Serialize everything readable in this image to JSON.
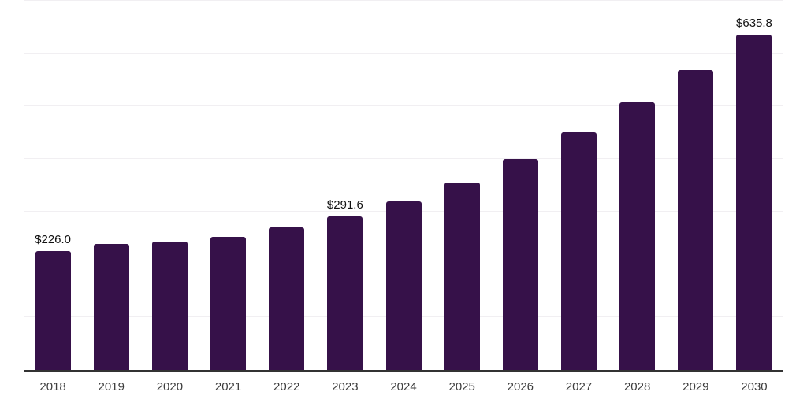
{
  "chart_data": {
    "type": "bar",
    "title": "",
    "xlabel": "",
    "ylabel": "",
    "categories": [
      "2018",
      "2019",
      "2020",
      "2021",
      "2022",
      "2023",
      "2024",
      "2025",
      "2026",
      "2027",
      "2028",
      "2029",
      "2030"
    ],
    "values": [
      226.0,
      239,
      244,
      253,
      270,
      291.6,
      319,
      356,
      400,
      451,
      507,
      568,
      635.8
    ],
    "value_labels": [
      "$226.0",
      "",
      "",
      "",
      "",
      "$291.6",
      "",
      "",
      "",
      "",
      "",
      "",
      "$635.8"
    ],
    "ylim": [
      0,
      700
    ],
    "gridline_step": 100,
    "grid": "horizontal",
    "legend": "none",
    "colors": {
      "bar": "#361149",
      "gridline": "#f1eff2",
      "axis_line": "#333333",
      "value_label": "#111111",
      "tick_label": "#3d3d3d",
      "background": "#ffffff"
    }
  }
}
